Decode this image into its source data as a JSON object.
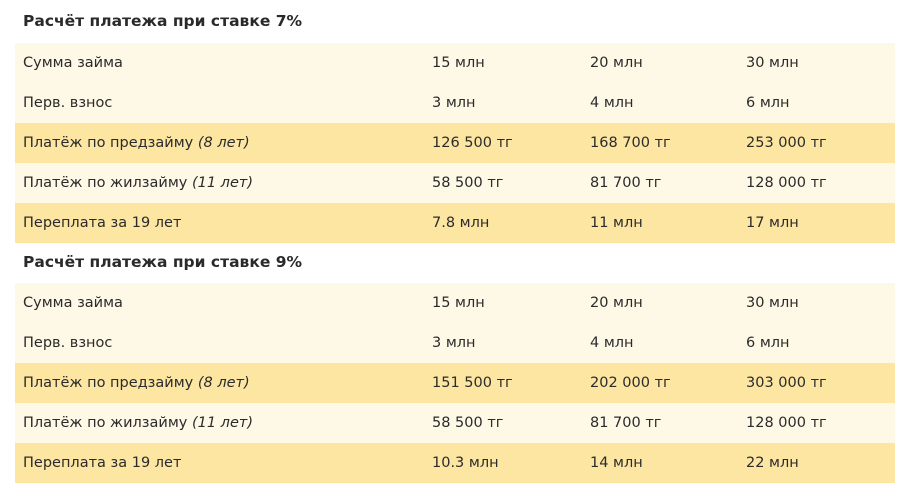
{
  "sections": [
    {
      "title": "Расчёт платежа при ставке 7%",
      "rows": [
        {
          "label": "Сумма займа",
          "note": "",
          "values": [
            "15 млн",
            "20 млн",
            "30 млн"
          ],
          "shade": "light"
        },
        {
          "label": "Перв. взнос",
          "note": "",
          "values": [
            "3 млн",
            "4 млн",
            "6 млн"
          ],
          "shade": "light"
        },
        {
          "label": "Платёж по предзайму ",
          "note": "(8 лет)",
          "values": [
            "126 500 тг",
            "168 700 тг",
            "253 000 тг"
          ],
          "shade": "dark"
        },
        {
          "label": "Платёж по жилзайму ",
          "note": "(11 лет)",
          "values": [
            "58 500 тг",
            "81 700 тг",
            "128 000 тг"
          ],
          "shade": "light"
        },
        {
          "label": "Переплата за 19 лет",
          "note": "",
          "values": [
            "7.8 млн",
            "11 млн",
            "17 млн"
          ],
          "shade": "dark"
        }
      ]
    },
    {
      "title": "Расчёт платежа при ставке 9%",
      "rows": [
        {
          "label": "Сумма займа",
          "note": "",
          "values": [
            "15 млн",
            "20 млн",
            "30 млн"
          ],
          "shade": "light"
        },
        {
          "label": "Перв. взнос",
          "note": "",
          "values": [
            "3 млн",
            "4 млн",
            "6 млн"
          ],
          "shade": "light"
        },
        {
          "label": "Платёж по предзайму ",
          "note": "(8 лет)",
          "values": [
            "151 500 тг",
            "202 000 тг",
            "303 000 тг"
          ],
          "shade": "dark"
        },
        {
          "label": "Платёж по жилзайму ",
          "note": "(11 лет)",
          "values": [
            "58 500 тг",
            "81 700 тг",
            "128 000 тг"
          ],
          "shade": "light"
        },
        {
          "label": "Переплата за 19 лет",
          "note": "",
          "values": [
            "10.3 млн",
            "14 млн",
            "22 млн"
          ],
          "shade": "dark"
        }
      ]
    }
  ],
  "colors": {
    "light": "#fef8e6",
    "dark": "#fce6a2"
  }
}
